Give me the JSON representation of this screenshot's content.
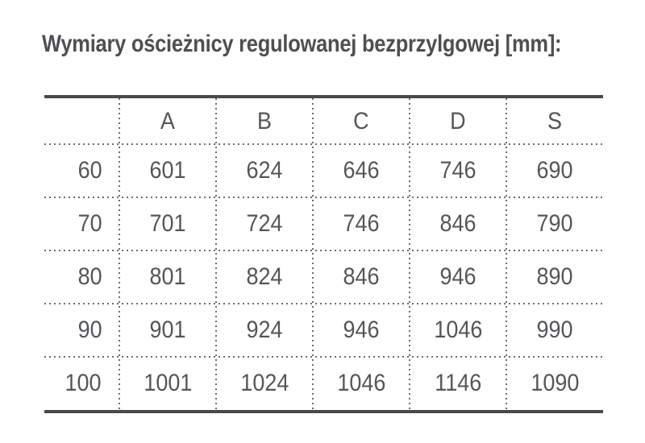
{
  "title": "Wymiary ościeżnicy regulowanej bezprzylgowej [mm]:",
  "table": {
    "column_headers": [
      "",
      "A",
      "B",
      "C",
      "D",
      "S"
    ],
    "rows": [
      {
        "label": "60",
        "values": [
          "601",
          "624",
          "646",
          "746",
          "690"
        ]
      },
      {
        "label": "70",
        "values": [
          "701",
          "724",
          "746",
          "846",
          "790"
        ]
      },
      {
        "label": "80",
        "values": [
          "801",
          "824",
          "846",
          "946",
          "890"
        ]
      },
      {
        "label": "90",
        "values": [
          "901",
          "924",
          "946",
          "1046",
          "990"
        ]
      },
      {
        "label": "100",
        "values": [
          "1001",
          "1024",
          "1046",
          "1146",
          "1090"
        ]
      }
    ]
  },
  "colors": {
    "background": "#ffffff",
    "title_text": "#4e4f53",
    "cell_text": "#55565a",
    "solid_border": "#48494b",
    "dotted_line": "#6d6d6f"
  },
  "chart_data": {
    "type": "table",
    "title": "Wymiary ościeżnicy regulowanej bezprzylgowej [mm]:",
    "columns": [
      "",
      "A",
      "B",
      "C",
      "D",
      "S"
    ],
    "rows": [
      [
        "60",
        "601",
        "624",
        "646",
        "746",
        "690"
      ],
      [
        "70",
        "701",
        "724",
        "746",
        "846",
        "790"
      ],
      [
        "80",
        "801",
        "824",
        "846",
        "946",
        "890"
      ],
      [
        "90",
        "901",
        "924",
        "946",
        "1046",
        "990"
      ],
      [
        "100",
        "1001",
        "1024",
        "1046",
        "1146",
        "1090"
      ]
    ]
  }
}
